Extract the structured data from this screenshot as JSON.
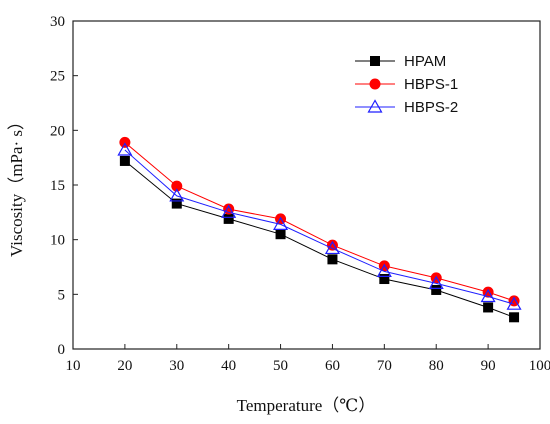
{
  "chart_data": {
    "type": "line",
    "xlabel": "Temperature（℃）",
    "ylabel": "Viscosity（mPa· s）",
    "xlim": [
      10,
      100
    ],
    "ylim": [
      0,
      30
    ],
    "xticks": [
      10,
      20,
      30,
      40,
      50,
      60,
      70,
      80,
      90,
      100
    ],
    "yticks": [
      0,
      5,
      10,
      15,
      20,
      25,
      30
    ],
    "grid": false,
    "legend_position": "top-right",
    "x": [
      20,
      30,
      40,
      50,
      60,
      70,
      80,
      90,
      95
    ],
    "series": [
      {
        "name": "HPAM",
        "values": [
          17.2,
          13.3,
          11.9,
          10.5,
          8.2,
          6.4,
          5.4,
          3.8,
          2.9
        ],
        "color": "#000000",
        "marker": "square"
      },
      {
        "name": "HBPS-1",
        "values": [
          18.9,
          14.9,
          12.8,
          11.9,
          9.5,
          7.6,
          6.5,
          5.2,
          4.4
        ],
        "color": "#ff0000",
        "marker": "circle"
      },
      {
        "name": "HBPS-2",
        "values": [
          18.2,
          14.0,
          12.5,
          11.4,
          9.2,
          7.1,
          6.0,
          4.8,
          4.1
        ],
        "color": "#1f1fff",
        "marker": "triangle-open"
      }
    ]
  }
}
